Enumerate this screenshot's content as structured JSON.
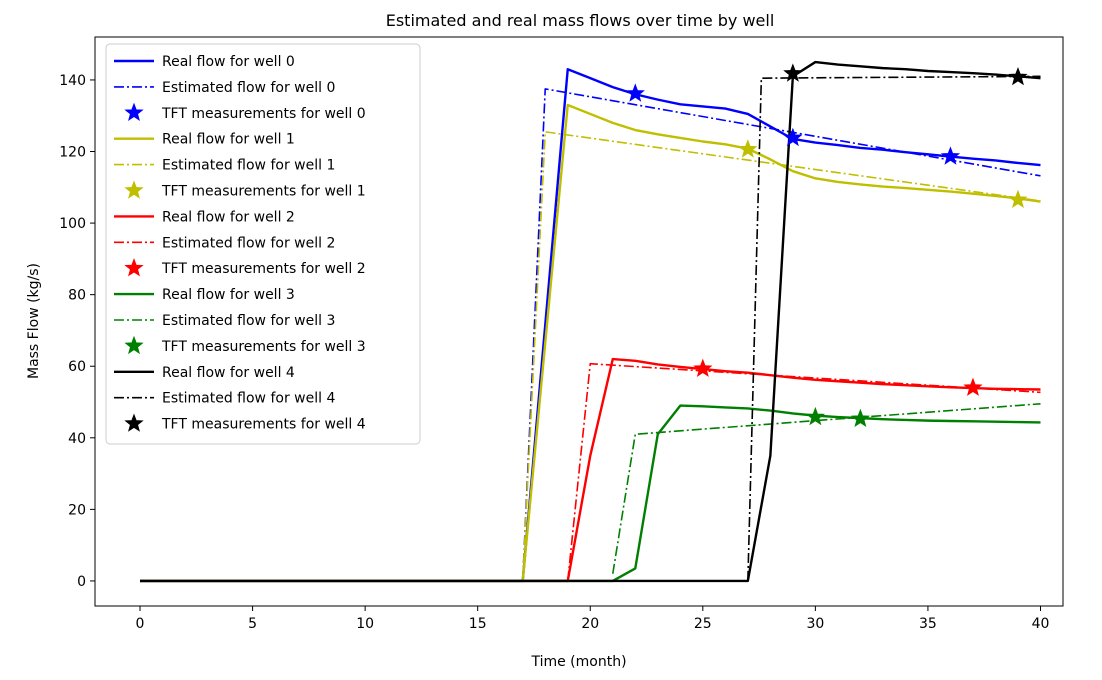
{
  "chart_data": {
    "type": "line",
    "title": "Estimated and real mass flows over time by well",
    "xlabel": "Time (month)",
    "ylabel": "Mass Flow (kg/s)",
    "xlim": [
      -2,
      41
    ],
    "ylim": [
      -7,
      152
    ],
    "xticks": [
      0,
      5,
      10,
      15,
      20,
      25,
      30,
      35,
      40
    ],
    "yticks": [
      0,
      20,
      40,
      60,
      80,
      100,
      120,
      140
    ],
    "grid": false,
    "legend": "upper-left",
    "series": [
      {
        "name": "Real flow for well 0",
        "kind": "real",
        "color": "#0000ff",
        "points": [
          [
            0,
            0
          ],
          [
            17,
            0
          ],
          [
            19,
            143
          ],
          [
            20,
            140.5
          ],
          [
            21,
            138
          ],
          [
            22,
            136
          ],
          [
            23,
            134.5
          ],
          [
            24,
            133.2
          ],
          [
            25,
            132.6
          ],
          [
            26,
            132
          ],
          [
            27,
            130.5
          ],
          [
            28,
            127
          ],
          [
            29,
            123.5
          ],
          [
            30,
            122.5
          ],
          [
            31,
            121.8
          ],
          [
            32,
            121
          ],
          [
            33,
            120.5
          ],
          [
            34,
            119.8
          ],
          [
            35,
            119.2
          ],
          [
            36,
            118.6
          ],
          [
            37,
            118
          ],
          [
            38,
            117.5
          ],
          [
            39,
            116.8
          ],
          [
            40,
            116.2
          ]
        ]
      },
      {
        "name": "Estimated flow for well 0",
        "kind": "estimated",
        "color": "#0000ff",
        "points": [
          [
            17,
            0
          ],
          [
            18,
            137.5
          ],
          [
            40,
            113.2
          ]
        ]
      },
      {
        "name": "TFT measurements for well 0",
        "kind": "measured",
        "color": "#0000ff",
        "points": [
          [
            22,
            136.2
          ],
          [
            29,
            123.8
          ],
          [
            36,
            118.6
          ]
        ]
      },
      {
        "name": "Real flow for well 1",
        "kind": "real",
        "color": "#bfbf00",
        "points": [
          [
            0,
            0
          ],
          [
            17,
            0
          ],
          [
            19,
            133
          ],
          [
            20,
            130.5
          ],
          [
            21,
            128
          ],
          [
            22,
            126
          ],
          [
            23,
            124.8
          ],
          [
            24,
            123.8
          ],
          [
            25,
            122.8
          ],
          [
            26,
            122
          ],
          [
            27,
            120.8
          ],
          [
            28,
            117.8
          ],
          [
            29,
            114.5
          ],
          [
            30,
            112.5
          ],
          [
            31,
            111.5
          ],
          [
            32,
            110.8
          ],
          [
            33,
            110.2
          ],
          [
            34,
            109.8
          ],
          [
            35,
            109.3
          ],
          [
            36,
            108.8
          ],
          [
            37,
            108.2
          ],
          [
            38,
            107.6
          ],
          [
            39,
            106.9
          ],
          [
            40,
            106
          ]
        ]
      },
      {
        "name": "Estimated flow for well 1",
        "kind": "estimated",
        "color": "#bfbf00",
        "points": [
          [
            17,
            0
          ],
          [
            18,
            125.5
          ],
          [
            40,
            106.2
          ]
        ]
      },
      {
        "name": "TFT measurements for well 1",
        "kind": "measured",
        "color": "#bfbf00",
        "points": [
          [
            27,
            120.6
          ],
          [
            39,
            106.5
          ]
        ]
      },
      {
        "name": "Real flow for well 2",
        "kind": "real",
        "color": "#ff0000",
        "points": [
          [
            0,
            0
          ],
          [
            19,
            0
          ],
          [
            20,
            35
          ],
          [
            21,
            62
          ],
          [
            22,
            61.5
          ],
          [
            23,
            60.5
          ],
          [
            24,
            59.8
          ],
          [
            25,
            59.2
          ],
          [
            26,
            58.6
          ],
          [
            27,
            58.2
          ],
          [
            28,
            57.5
          ],
          [
            29,
            56.8
          ],
          [
            30,
            56.2
          ],
          [
            31,
            55.8
          ],
          [
            32,
            55.4
          ],
          [
            33,
            55
          ],
          [
            34,
            54.7
          ],
          [
            35,
            54.4
          ],
          [
            36,
            54.1
          ],
          [
            37,
            53.9
          ],
          [
            38,
            53.7
          ],
          [
            39,
            53.6
          ],
          [
            40,
            53.5
          ]
        ]
      },
      {
        "name": "Estimated flow for well 2",
        "kind": "estimated",
        "color": "#ff0000",
        "points": [
          [
            19,
            0
          ],
          [
            20,
            60.7
          ],
          [
            40,
            52.7
          ]
        ]
      },
      {
        "name": "TFT measurements for well 2",
        "kind": "measured",
        "color": "#ff0000",
        "points": [
          [
            25,
            59.3
          ],
          [
            37,
            54
          ]
        ]
      },
      {
        "name": "Real flow for well 3",
        "kind": "real",
        "color": "#008000",
        "points": [
          [
            0,
            0
          ],
          [
            21,
            0
          ],
          [
            22,
            3.5
          ],
          [
            23,
            41
          ],
          [
            24,
            49
          ],
          [
            25,
            48.8
          ],
          [
            26,
            48.5
          ],
          [
            27,
            48.2
          ],
          [
            28,
            47.6
          ],
          [
            29,
            46.8
          ],
          [
            30,
            46.2
          ],
          [
            31,
            45.8
          ],
          [
            32,
            45.5
          ],
          [
            33,
            45.2
          ],
          [
            34,
            45
          ],
          [
            35,
            44.8
          ],
          [
            36,
            44.7
          ],
          [
            37,
            44.6
          ],
          [
            38,
            44.5
          ],
          [
            39,
            44.4
          ],
          [
            40,
            44.3
          ]
        ]
      },
      {
        "name": "Estimated flow for well 3",
        "kind": "estimated",
        "color": "#008000",
        "points": [
          [
            21,
            2
          ],
          [
            22,
            41
          ],
          [
            30,
            44.8
          ],
          [
            40,
            49.5
          ]
        ]
      },
      {
        "name": "TFT measurements for well 3",
        "kind": "measured",
        "color": "#008000",
        "points": [
          [
            30,
            45.8
          ],
          [
            32,
            45.3
          ]
        ]
      },
      {
        "name": "Real flow for well 4",
        "kind": "real",
        "color": "#000000",
        "points": [
          [
            0,
            0
          ],
          [
            27,
            0
          ],
          [
            28,
            35
          ],
          [
            29,
            141
          ],
          [
            30,
            145
          ],
          [
            31,
            144.3
          ],
          [
            32,
            143.8
          ],
          [
            33,
            143.3
          ],
          [
            34,
            143
          ],
          [
            35,
            142.5
          ],
          [
            36,
            142.2
          ],
          [
            37,
            141.9
          ],
          [
            38,
            141.5
          ],
          [
            39,
            141
          ],
          [
            40,
            140.5
          ]
        ]
      },
      {
        "name": "Estimated flow for well 4",
        "kind": "estimated",
        "color": "#000000",
        "points": [
          [
            27,
            0
          ],
          [
            27.6,
            140.5
          ],
          [
            40,
            141
          ]
        ]
      },
      {
        "name": "TFT measurements for well 4",
        "kind": "measured",
        "color": "#000000",
        "points": [
          [
            29,
            141.8
          ],
          [
            39,
            140.8
          ]
        ]
      }
    ]
  }
}
